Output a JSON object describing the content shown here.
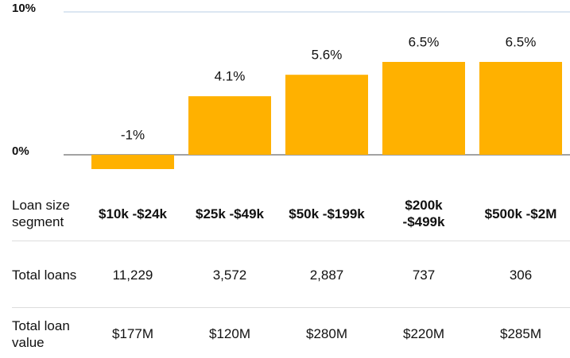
{
  "chart_data": {
    "type": "bar",
    "xlabel": "Loan size segment",
    "categories": [
      "$10k -$24k",
      "$25k -$49k",
      "$50k -$199k",
      "$200k -$499k",
      "$500k -$2M"
    ],
    "values": [
      -1,
      4.1,
      5.6,
      6.5,
      6.5
    ],
    "value_labels": [
      "-1%",
      "4.1%",
      "5.6%",
      "6.5%",
      "6.5%"
    ],
    "color": "#ffb100",
    "ylim": [
      0,
      10
    ],
    "yticks": [
      {
        "value": 0,
        "label": "0%"
      },
      {
        "value": 10,
        "label": "10%"
      }
    ],
    "grid": true
  },
  "table": {
    "rows": [
      {
        "label": "Total loans",
        "cells": [
          "11,229",
          "3,572",
          "2,887",
          "737",
          "306"
        ]
      },
      {
        "label": "Total loan value",
        "cells": [
          "$177M",
          "$120M",
          "$280M",
          "$220M",
          "$285M"
        ]
      }
    ]
  }
}
